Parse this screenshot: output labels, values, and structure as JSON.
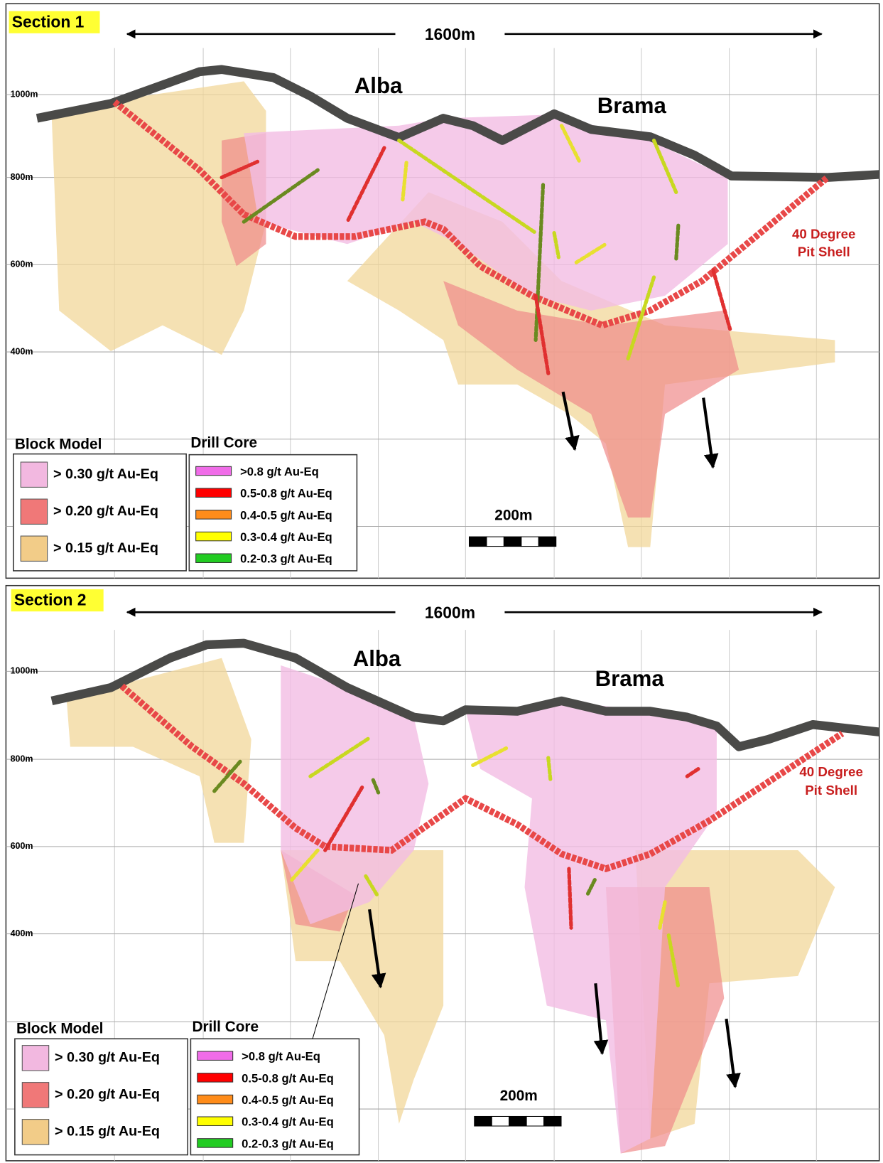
{
  "sections": [
    {
      "label": "Section 1",
      "width_label": "1600m",
      "elevations": [
        "1000m",
        "800m",
        "600m",
        "400m"
      ],
      "deposits": [
        "Alba",
        "Brama"
      ],
      "pit_shell": [
        "40 Degree",
        "Pit Shell"
      ],
      "block_model": {
        "title": "Block Model",
        "items": [
          "> 0.30 g/t Au-Eq",
          "> 0.20 g/t Au-Eq",
          "> 0.15 g/t Au-Eq"
        ]
      },
      "drill_core": {
        "title": "Drill Core",
        "items": [
          ">0.8 g/t Au-Eq",
          "0.5-0.8 g/t Au-Eq",
          "0.4-0.5 g/t Au-Eq",
          "0.3-0.4 g/t Au-Eq",
          "0.2-0.3 g/t Au-Eq"
        ]
      },
      "scale_bar": "200m"
    },
    {
      "label": "Section 2",
      "width_label": "1600m",
      "elevations": [
        "1000m",
        "800m",
        "600m",
        "400m"
      ],
      "deposits": [
        "Alba",
        "Brama"
      ],
      "pit_shell": [
        "40 Degree",
        "Pit Shell"
      ],
      "block_model": {
        "title": "Block Model",
        "items": [
          "> 0.30 g/t Au-Eq",
          "> 0.20 g/t Au-Eq",
          "> 0.15 g/t Au-Eq"
        ]
      },
      "drill_core": {
        "title": "Drill Core",
        "items": [
          ">0.8 g/t Au-Eq",
          "0.5-0.8 g/t Au-Eq",
          "0.4-0.5 g/t Au-Eq",
          "0.3-0.4 g/t Au-Eq",
          "0.2-0.3 g/t Au-Eq"
        ]
      },
      "scale_bar": "200m"
    }
  ]
}
